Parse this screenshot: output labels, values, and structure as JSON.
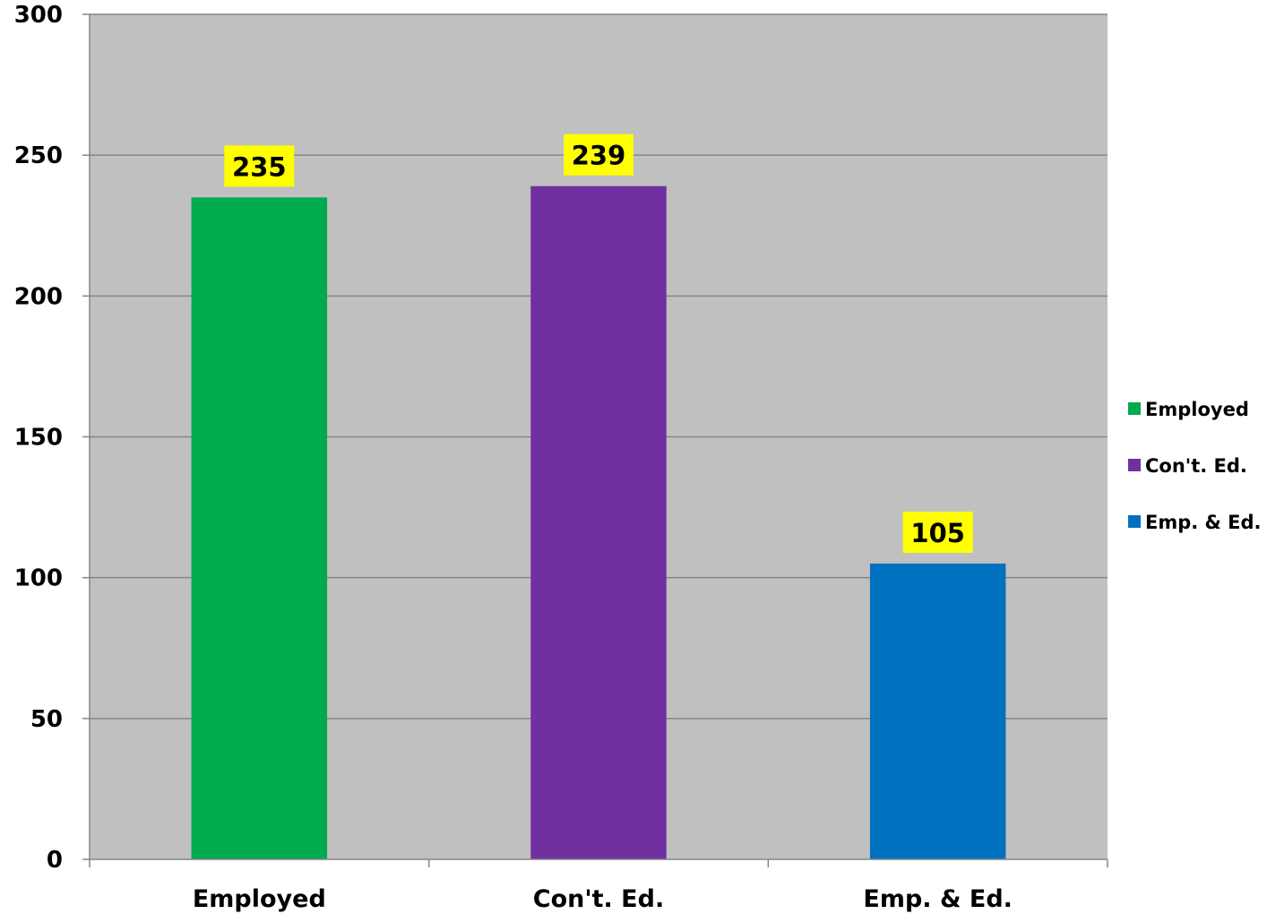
{
  "chart_data": {
    "type": "bar",
    "categories": [
      "Employed",
      "Con't. Ed.",
      "Emp. & Ed."
    ],
    "values": [
      235,
      239,
      105
    ],
    "colors": [
      "#00AB4E",
      "#7030A0",
      "#0070C0"
    ],
    "data_labels": [
      "235",
      "239",
      "105"
    ],
    "data_label_background": "#FFFF00",
    "plot_background": "#C0C0C0",
    "gridline_color": "#868686",
    "ylim": [
      0,
      300
    ],
    "yticks": [
      0,
      50,
      100,
      150,
      200,
      250,
      300
    ],
    "ytick_labels": [
      "0",
      "50",
      "100",
      "150",
      "200",
      "250",
      "300"
    ],
    "grid": true,
    "legend": {
      "placement": "right",
      "entries": [
        "Employed",
        "Con't. Ed.",
        "Emp. & Ed."
      ]
    }
  }
}
